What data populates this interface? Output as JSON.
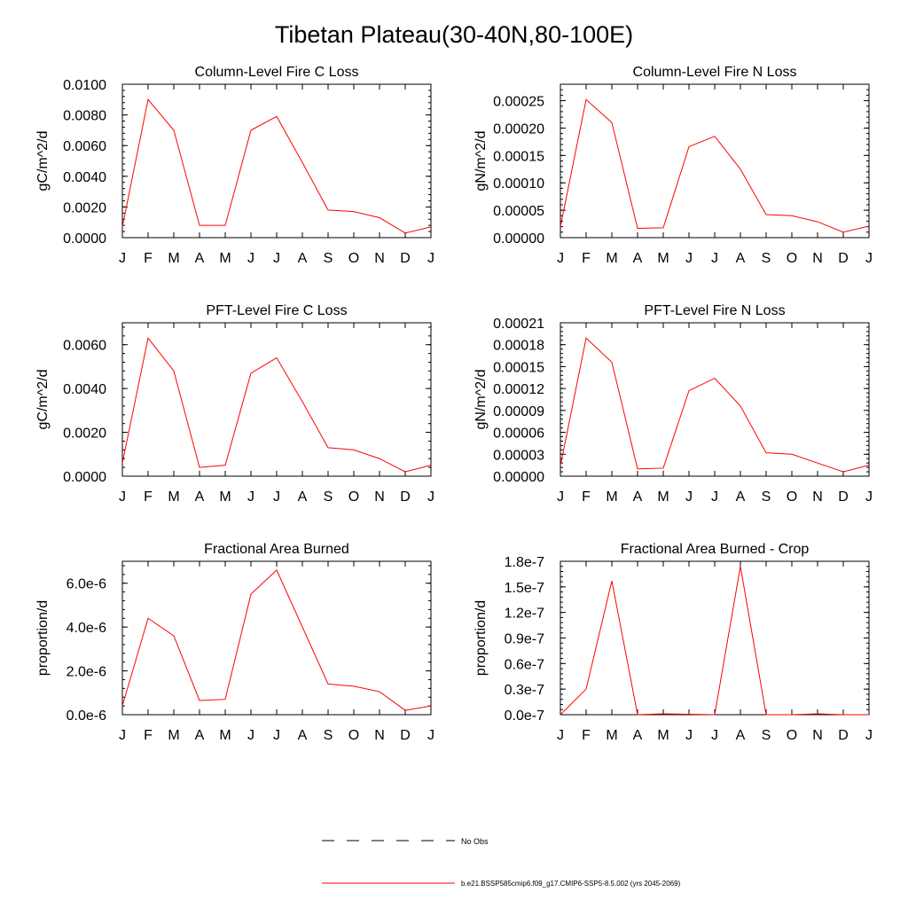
{
  "figure": {
    "title": "Tibetan Plateau(30-40N,80-100E)",
    "line_color": "#ff0000",
    "obs_color": "#000000",
    "legend": {
      "obs_label": "No Obs",
      "model_label": "b.e21.BSSP585cmip6.f09_g17.CMIP6-SSP5-8.5.002 (yrs 2045-2069)"
    }
  },
  "chart_data": [
    {
      "type": "line",
      "title": "Column-Level Fire C Loss",
      "ylabel": "gC/m^2/d",
      "categories": [
        "J",
        "F",
        "M",
        "A",
        "M",
        "J",
        "J",
        "A",
        "S",
        "O",
        "N",
        "D",
        "J"
      ],
      "ylim": [
        0,
        0.01
      ],
      "yticks": [
        {
          "v": 0,
          "label": "0.0000"
        },
        {
          "v": 0.002,
          "label": "0.0020"
        },
        {
          "v": 0.004,
          "label": "0.0040"
        },
        {
          "v": 0.006,
          "label": "0.0060"
        },
        {
          "v": 0.008,
          "label": "0.0080"
        },
        {
          "v": 0.01,
          "label": "0.0100"
        }
      ],
      "series": [
        {
          "values": [
            0.0007,
            0.009,
            0.007,
            0.0008,
            0.0008,
            0.007,
            0.0079,
            0.0049,
            0.0018,
            0.0017,
            0.0013,
            0.0003,
            0.0007
          ]
        }
      ]
    },
    {
      "type": "line",
      "title": "Column-Level Fire N Loss",
      "ylabel": "gN/m^2/d",
      "categories": [
        "J",
        "F",
        "M",
        "A",
        "M",
        "J",
        "J",
        "A",
        "S",
        "O",
        "N",
        "D",
        "J"
      ],
      "ylim": [
        0,
        0.00028
      ],
      "yticks": [
        {
          "v": 0,
          "label": "0.00000"
        },
        {
          "v": 5e-05,
          "label": "0.00005"
        },
        {
          "v": 0.0001,
          "label": "0.00010"
        },
        {
          "v": 0.00015,
          "label": "0.00015"
        },
        {
          "v": 0.0002,
          "label": "0.00020"
        },
        {
          "v": 0.00025,
          "label": "0.00025"
        }
      ],
      "series": [
        {
          "values": [
            2e-05,
            0.000252,
            0.00021,
            1.7e-05,
            1.8e-05,
            0.000166,
            0.000185,
            0.000125,
            4.2e-05,
            4e-05,
            2.9e-05,
            1e-05,
            2.1e-05
          ]
        }
      ]
    },
    {
      "type": "line",
      "title": "PFT-Level Fire C Loss",
      "ylabel": "gC/m^2/d",
      "categories": [
        "J",
        "F",
        "M",
        "A",
        "M",
        "J",
        "J",
        "A",
        "S",
        "O",
        "N",
        "D",
        "J"
      ],
      "ylim": [
        0,
        0.007
      ],
      "yticks": [
        {
          "v": 0,
          "label": "0.0000"
        },
        {
          "v": 0.002,
          "label": "0.0020"
        },
        {
          "v": 0.004,
          "label": "0.0040"
        },
        {
          "v": 0.006,
          "label": "0.0060"
        }
      ],
      "series": [
        {
          "values": [
            0.0006,
            0.0063,
            0.0048,
            0.0004,
            0.0005,
            0.0047,
            0.0054,
            0.0034,
            0.0013,
            0.0012,
            0.0008,
            0.0002,
            0.0005
          ]
        }
      ]
    },
    {
      "type": "line",
      "title": "PFT-Level Fire N Loss",
      "ylabel": "gN/m^2/d",
      "categories": [
        "J",
        "F",
        "M",
        "A",
        "M",
        "J",
        "J",
        "A",
        "S",
        "O",
        "N",
        "D",
        "J"
      ],
      "ylim": [
        0,
        0.00021
      ],
      "yticks": [
        {
          "v": 0,
          "label": "0.00000"
        },
        {
          "v": 3e-05,
          "label": "0.00003"
        },
        {
          "v": 6e-05,
          "label": "0.00006"
        },
        {
          "v": 9e-05,
          "label": "0.00009"
        },
        {
          "v": 0.00012,
          "label": "0.00012"
        },
        {
          "v": 0.00015,
          "label": "0.00015"
        },
        {
          "v": 0.00018,
          "label": "0.00018"
        },
        {
          "v": 0.00021,
          "label": "0.00021"
        }
      ],
      "series": [
        {
          "values": [
            1.4e-05,
            0.000189,
            0.000156,
            1e-05,
            1.1e-05,
            0.000117,
            0.000134,
            9.6e-05,
            3.2e-05,
            3e-05,
            1.8e-05,
            6e-06,
            1.5e-05
          ]
        }
      ]
    },
    {
      "type": "line",
      "title": "Fractional Area Burned",
      "ylabel": "proportion/d",
      "categories": [
        "J",
        "F",
        "M",
        "A",
        "M",
        "J",
        "J",
        "A",
        "S",
        "O",
        "N",
        "D",
        "J"
      ],
      "ylim": [
        0,
        7e-06
      ],
      "yticks": [
        {
          "v": 0,
          "label": "0.0e-6"
        },
        {
          "v": 2e-06,
          "label": "2.0e-6"
        },
        {
          "v": 4e-06,
          "label": "4.0e-6"
        },
        {
          "v": 6e-06,
          "label": "6.0e-6"
        }
      ],
      "series": [
        {
          "values": [
            4e-07,
            4.4e-06,
            3.6e-06,
            6.5e-07,
            7e-07,
            5.5e-06,
            6.6e-06,
            4e-06,
            1.4e-06,
            1.3e-06,
            1.05e-06,
            2e-07,
            4e-07
          ]
        }
      ]
    },
    {
      "type": "line",
      "title": "Fractional Area Burned - Crop",
      "ylabel": "proportion/d",
      "categories": [
        "J",
        "F",
        "M",
        "A",
        "M",
        "J",
        "J",
        "A",
        "S",
        "O",
        "N",
        "D",
        "J"
      ],
      "ylim": [
        0,
        1.8e-07
      ],
      "yticks": [
        {
          "v": 0,
          "label": "0.0e-7"
        },
        {
          "v": 3e-08,
          "label": "0.3e-7"
        },
        {
          "v": 6e-08,
          "label": "0.6e-7"
        },
        {
          "v": 9e-08,
          "label": "0.9e-7"
        },
        {
          "v": 1.2e-07,
          "label": "1.2e-7"
        },
        {
          "v": 1.5e-07,
          "label": "1.5e-7"
        },
        {
          "v": 1.8e-07,
          "label": "1.8e-7"
        }
      ],
      "series": [
        {
          "values": [
            0,
            3e-08,
            1.57e-07,
            0,
            1e-09,
            5e-10,
            0,
            1.74e-07,
            0,
            0,
            1e-09,
            0,
            0
          ]
        }
      ]
    }
  ]
}
